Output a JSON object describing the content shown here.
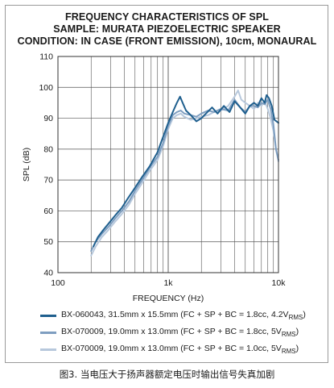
{
  "chart_data": {
    "type": "line",
    "title": "FREQUENCY CHARACTERISTICS OF SPL",
    "subtitle_1": "SAMPLE: MURATA PIEZOELECTRIC SPEAKER",
    "subtitle_2": "CONDITION: IN CASE (FRONT EMISSION), 10cm, MONAURAL",
    "xlabel": "FREQUENCY (Hz)",
    "ylabel": "SPL (dB)",
    "x_scale": "log",
    "xlim": [
      100,
      10000
    ],
    "ylim": [
      40,
      110
    ],
    "x_tick_labels": [
      {
        "value": 100,
        "label": "100"
      },
      {
        "value": 1000,
        "label": "1k"
      },
      {
        "value": 10000,
        "label": "10k"
      }
    ],
    "y_ticks": [
      40,
      50,
      60,
      70,
      80,
      90,
      100,
      110
    ],
    "grid": true,
    "legend_placement": "bottom",
    "series": [
      {
        "name": "BX-060043, 31.5mm x 15.5mm (FC + SP + BC = 1.8cc, 4.2V",
        "name_sub": "RMS",
        "name_end": ")",
        "color": "#1f5f8e",
        "x": [
          210,
          230,
          260,
          290,
          330,
          380,
          430,
          500,
          580,
          680,
          800,
          900,
          1000,
          1100,
          1200,
          1280,
          1350,
          1450,
          1600,
          1800,
          2000,
          2200,
          2500,
          2800,
          3200,
          3600,
          4000,
          4500,
          5000,
          5500,
          6000,
          6500,
          7000,
          7500,
          7800,
          8200,
          8700,
          9200,
          10000
        ],
        "y": [
          48.5,
          51.5,
          54,
          56,
          58.5,
          61,
          64,
          67.5,
          71,
          74.5,
          79,
          84,
          88.5,
          92,
          95,
          97,
          95,
          92.5,
          91,
          89,
          90,
          91.5,
          93.5,
          91.5,
          94,
          92,
          95.5,
          93.5,
          91.5,
          94,
          95,
          94,
          96.5,
          95,
          97.5,
          96.5,
          94,
          89.5,
          88.5
        ]
      },
      {
        "name": "BX-070009, 19.0mm x 13.0mm (FC + SP + BC = 1.8cc, 5V",
        "name_sub": "RMS",
        "name_end": ")",
        "color": "#7e9ec0",
        "x": [
          200,
          220,
          250,
          290,
          330,
          380,
          440,
          500,
          580,
          680,
          800,
          900,
          1000,
          1100,
          1200,
          1300,
          1400,
          1600,
          1800,
          2000,
          2300,
          2600,
          3000,
          3500,
          4000,
          4500,
          5000,
          5500,
          6000,
          6500,
          7000,
          7500,
          8000,
          8500,
          9000,
          9500,
          10000
        ],
        "y": [
          47,
          50,
          52.5,
          55,
          57.5,
          60,
          63,
          66.5,
          70,
          74,
          77.5,
          82,
          87.5,
          91,
          92,
          92.5,
          91.5,
          91,
          90.5,
          91.5,
          92.5,
          92,
          93,
          92.5,
          96,
          93.5,
          92,
          94,
          94,
          93.5,
          95,
          94.5,
          96,
          93,
          88,
          80,
          76.5
        ]
      },
      {
        "name": "BX-070009, 19.0mm x 13.0mm (FC + SP + BC = 1.0cc, 5V",
        "name_sub": "RMS",
        "name_end": ")",
        "color": "#b7c8dc",
        "x": [
          200,
          220,
          250,
          290,
          330,
          380,
          440,
          500,
          580,
          680,
          800,
          900,
          1000,
          1100,
          1200,
          1300,
          1400,
          1600,
          1800,
          2000,
          2300,
          2600,
          3000,
          3500,
          4000,
          4300,
          4600,
          5000,
          5500,
          6000,
          6500,
          7000,
          7500,
          8000,
          8500,
          9000,
          9500,
          10000
        ],
        "y": [
          45.5,
          48.5,
          51.5,
          54,
          56.5,
          59,
          62,
          65.5,
          69,
          73,
          76.5,
          81,
          86.5,
          90,
          91,
          91.5,
          90.5,
          89.5,
          90,
          90.5,
          91,
          92,
          92.5,
          94,
          97,
          99,
          96,
          95,
          94,
          93,
          95,
          94,
          95.5,
          93,
          90,
          86,
          80,
          76
        ]
      }
    ]
  },
  "caption": "图3. 当电压大于扬声器额定电压时输出信号失真加剧"
}
